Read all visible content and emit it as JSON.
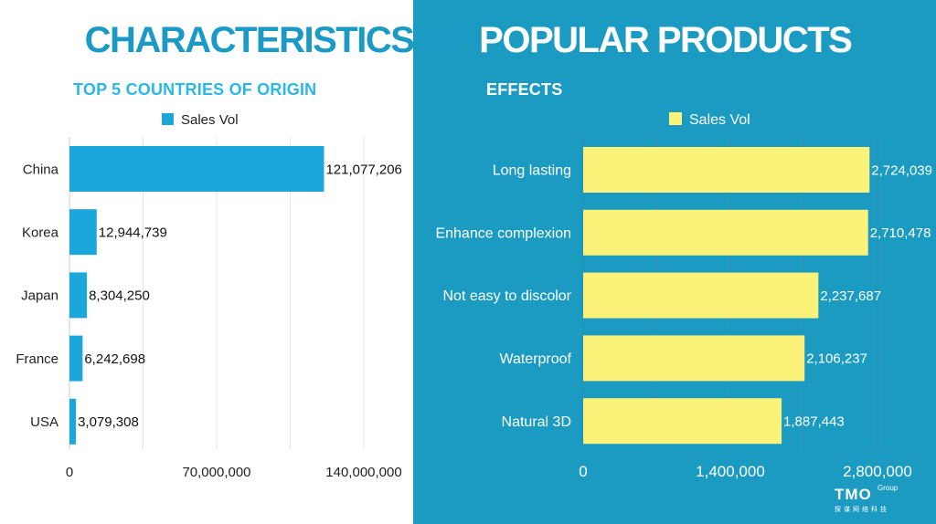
{
  "title": {
    "part1": "CHARACTERISTICS OF ",
    "part2": "POPULAR PRODUCTS"
  },
  "logo": {
    "main": "TMO",
    "sub": "Group",
    "cn": "探谋网络科技"
  },
  "colors": {
    "left_bar": "#1ba7dc",
    "right_bar": "#fbf27a",
    "right_bg": "#1b9bc1",
    "title_blue": "#1a9ac4",
    "subtitle_blue": "#29b8e8"
  },
  "chart_data": [
    {
      "type": "bar",
      "orientation": "horizontal",
      "title": "TOP 5 COUNTRIES OF ORIGIN",
      "legend": "Sales Vol",
      "legend_position": "top",
      "categories": [
        "China",
        "Korea",
        "Japan",
        "France",
        "USA"
      ],
      "values": [
        121077206,
        12944739,
        8304250,
        6242698,
        3079308
      ],
      "value_labels": [
        "121,077,206",
        "12,944,739",
        "8,304,250",
        "6,242,698",
        "3,079,308"
      ],
      "xlim": [
        0,
        140000000
      ],
      "ticks": [
        0,
        70000000,
        140000000
      ],
      "tick_labels": [
        "0",
        "70,000,000",
        "140,000,000"
      ],
      "grid": true
    },
    {
      "type": "bar",
      "orientation": "horizontal",
      "title": "EFFECTS",
      "legend": "Sales Vol",
      "legend_position": "top",
      "categories": [
        "Long lasting",
        "Enhance complexion",
        "Not easy to discolor",
        "Waterproof",
        "Natural 3D"
      ],
      "values": [
        2724039,
        2710478,
        2237687,
        2106237,
        1887443
      ],
      "value_labels": [
        "2,724,039",
        "2,710,478",
        "2,237,687",
        "2,106,237",
        "1,887,443"
      ],
      "xlim": [
        0,
        2800000
      ],
      "ticks": [
        0,
        1400000,
        2800000
      ],
      "tick_labels": [
        "0",
        "1,400,000",
        "2,800,000"
      ],
      "grid": true
    }
  ]
}
